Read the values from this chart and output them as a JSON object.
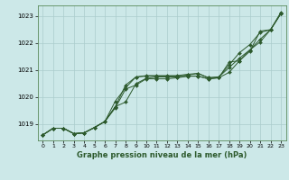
{
  "title": "Graphe pression niveau de la mer (hPa)",
  "background_color": "#cce8e8",
  "line_color": "#2d5a2d",
  "grid_color": "#aacccc",
  "x_ticks": [
    0,
    1,
    2,
    3,
    4,
    5,
    6,
    7,
    8,
    9,
    10,
    11,
    12,
    13,
    14,
    15,
    16,
    17,
    18,
    19,
    20,
    21,
    22,
    23
  ],
  "ylim": [
    1018.4,
    1023.4
  ],
  "yticks": [
    1019,
    1020,
    1021,
    1022,
    1023
  ],
  "series": [
    [
      1018.6,
      1018.85,
      1018.85,
      1018.65,
      1018.68,
      1018.88,
      1019.1,
      1019.65,
      1020.45,
      1020.75,
      1020.8,
      1020.8,
      1020.8,
      1020.8,
      1020.85,
      1020.88,
      1020.72,
      1020.75,
      1021.1,
      1021.45,
      1021.75,
      1022.15,
      1022.5,
      1023.1
    ],
    [
      1018.6,
      1018.85,
      1018.85,
      1018.65,
      1018.68,
      1018.88,
      1019.1,
      1019.85,
      1020.35,
      1020.75,
      1020.78,
      1020.78,
      1020.78,
      1020.78,
      1020.82,
      1020.88,
      1020.72,
      1020.75,
      1021.2,
      1021.65,
      1021.95,
      1022.4,
      1022.5,
      1023.1
    ],
    [
      1018.6,
      1018.85,
      1018.85,
      1018.65,
      1018.68,
      1018.88,
      1019.1,
      1019.65,
      1019.82,
      1020.5,
      1020.7,
      1020.75,
      1020.75,
      1020.75,
      1020.78,
      1020.78,
      1020.68,
      1020.72,
      1020.92,
      1021.35,
      1021.75,
      1022.05,
      1022.5,
      1023.1
    ],
    [
      1018.6,
      1018.85,
      1018.85,
      1018.65,
      1018.68,
      1018.88,
      1019.1,
      1019.6,
      1020.3,
      1020.45,
      1020.68,
      1020.68,
      1020.68,
      1020.72,
      1020.78,
      1020.78,
      1020.68,
      1020.72,
      1021.3,
      1021.35,
      1021.7,
      1022.45,
      1022.5,
      1023.15
    ]
  ]
}
